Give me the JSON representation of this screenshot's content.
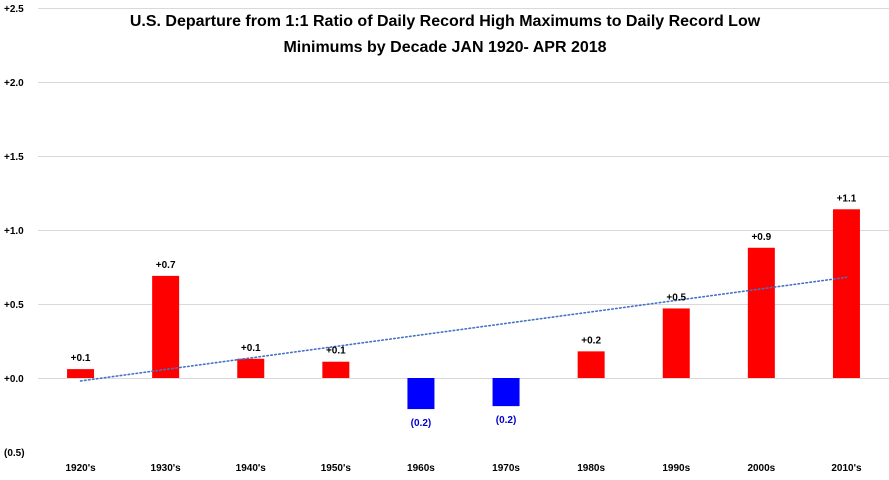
{
  "chart_data": {
    "type": "bar",
    "title_lines": [
      "U.S. Departure from 1:1 Ratio of Daily Record High Maximums to Daily Record Low",
      "Minimums by Decade JAN 1920- APR 2018"
    ],
    "categories": [
      "1920's",
      "1930's",
      "1940's",
      "1950's",
      "1960s",
      "1970s",
      "1980s",
      "1990s",
      "2000s",
      "2010's"
    ],
    "values": [
      0.06,
      0.69,
      0.13,
      0.11,
      -0.21,
      -0.19,
      0.18,
      0.47,
      0.88,
      1.14
    ],
    "data_labels": [
      "+0.1",
      "+0.7",
      "+0.1",
      "+0.1",
      "(0.2)",
      "(0.2)",
      "+0.2",
      "+0.5",
      "+0.9",
      "+1.1"
    ],
    "ylim": [
      -0.5,
      2.5
    ],
    "yticks": [
      -0.5,
      0.0,
      0.5,
      1.0,
      1.5,
      2.0,
      2.5
    ],
    "ytick_labels": [
      "(0.5)",
      "+0.0",
      "+0.5",
      "+1.0",
      "+1.5",
      "+2.0",
      "+2.5"
    ],
    "trendline": {
      "type": "linear",
      "style": "dotted",
      "start": -0.02,
      "end": 0.68
    },
    "grid": true,
    "legend": "none",
    "colors": {
      "positive": "#ff0000",
      "negative": "#0000ff",
      "positive_label": "#000000",
      "negative_label": "#0000cc",
      "trend": "#4472c4",
      "grid": "#d9d9d9"
    }
  }
}
